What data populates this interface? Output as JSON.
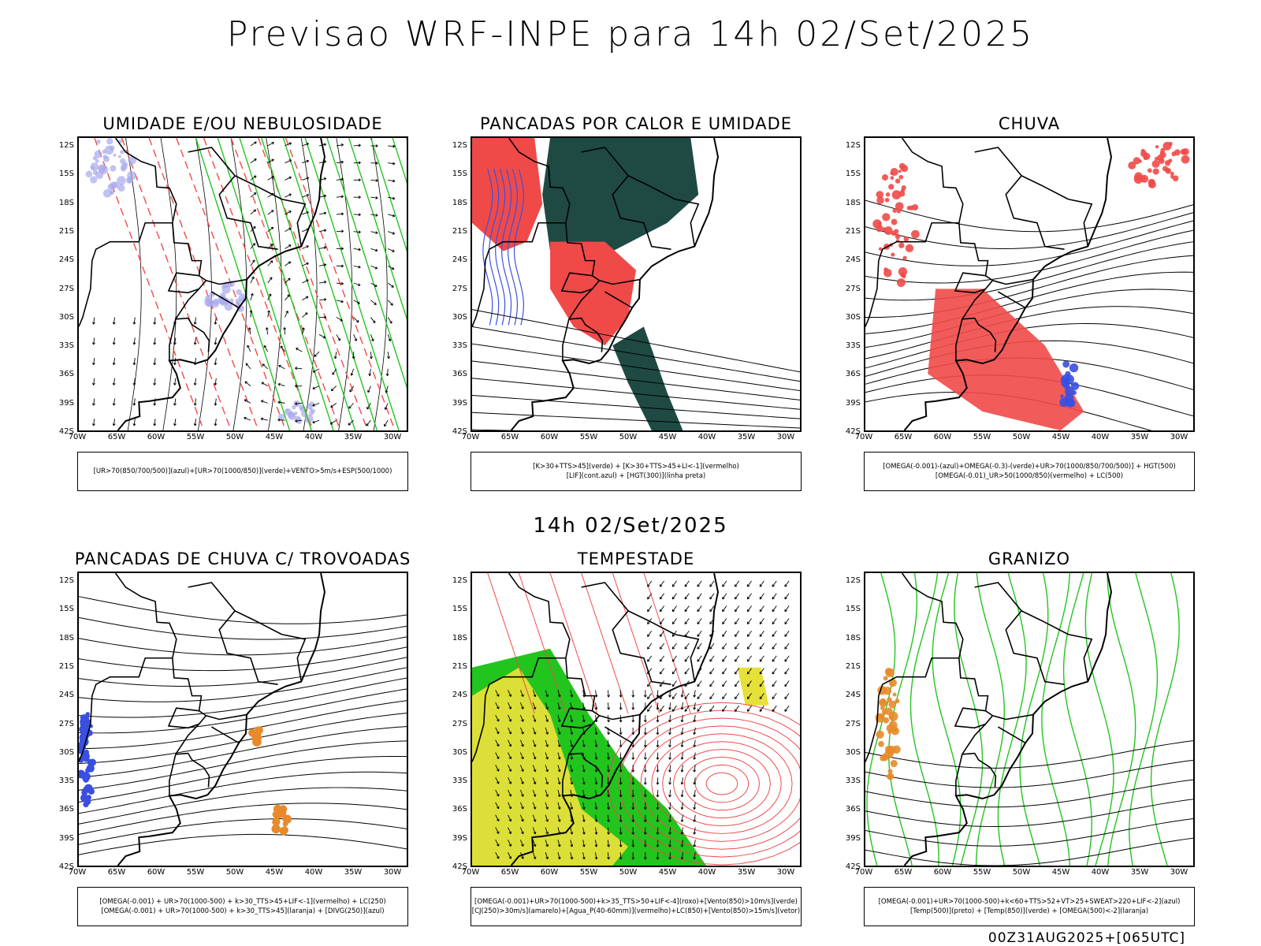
{
  "header": {
    "title": "Previsao WRF-INPE  para 14h 02/Set/2025"
  },
  "mid_title": "14h 02/Set/2025",
  "footer": "00Z31AUG2025+[065UTC]",
  "axes": {
    "lat_ticks": [
      "12S",
      "15S",
      "18S",
      "21S",
      "24S",
      "27S",
      "30S",
      "33S",
      "36S",
      "39S",
      "42S"
    ],
    "lon_ticks": [
      "70W",
      "65W",
      "60W",
      "55W",
      "50W",
      "45W",
      "40W",
      "35W",
      "30W"
    ]
  },
  "colors": {
    "blue": "#3a4fe0",
    "green": "#22c41e",
    "red": "#f04a48",
    "dark_teal": "#1f4a44",
    "yellow": "#e6e03a",
    "orange": "#e88a2a",
    "lavender": "#a8a8ec"
  },
  "panels": [
    {
      "id": "umidade",
      "title": "UMIDADE E/OU NEBULOSIDADE",
      "legend": [
        "[UR>70(850/700/500)](azul)+[UR>70(1000/850)](verde)+VENTO>5m/s+ESP(500/1000)"
      ]
    },
    {
      "id": "pancadas-calor",
      "title": "PANCADAS POR CALOR E UMIDADE",
      "legend": [
        "[K>30+TTS>45](verde) + [K>30+TTS>45+LI<-1](vermelho)",
        "[LIF](cont.azul) + [HGT(300)](linha preta)"
      ]
    },
    {
      "id": "chuva",
      "title": "CHUVA",
      "legend": [
        "[OMEGA(-0.001)-(azul)+OMEGA(-0.3)-(verde)+UR>70(1000/850/700/500)] + HGT(500)",
        "[OMEGA(-0.01)_UR>50(1000/850)(vermelho) + LC(500)"
      ]
    },
    {
      "id": "pancadas-trovoadas",
      "title": "PANCADAS DE CHUVA C/ TROVOADAS",
      "legend": [
        "[OMEGA(-0.001) + UR>70(1000-500) + k>30_TTS>45+LIF<-1](vermelho) + LC(250)",
        "[OMEGA(-0.001) + UR>70(1000-500) + k>30_TTS>45](laranja) + [DIVG(250)](azul)"
      ]
    },
    {
      "id": "tempestade",
      "title": "TEMPESTADE",
      "legend": [
        "[OMEGA(-0.001)+UR>70(1000-500)+k>35_TTS>50+LIF<-4](roxo)+[Vento(850)>10m/s](verde)",
        "[CJ(250)>30m/s](amarelo)+[Agua_P(40-60mm)](vermelho)+LC(850)+[Vento(850)>15m/s](vetor)"
      ]
    },
    {
      "id": "granizo",
      "title": "GRANIZO",
      "legend": [
        "[OMEGA(-0.001)+UR>70(1000-500)+k<60+TTS>52+VT>25+SWEAT>220+LIF<-2](azul)",
        "[Temp(500)](preto) + [Temp(850)](verde) + [OMEGA(500)<-2](laranja)"
      ]
    }
  ]
}
